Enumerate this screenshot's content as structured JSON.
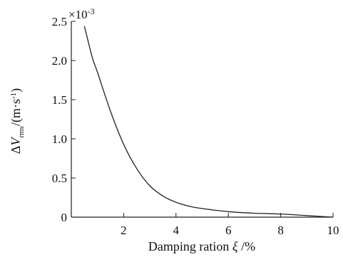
{
  "chart_data": {
    "type": "line",
    "title": "",
    "xlabel": {
      "prefix": "Damping ration ",
      "symbol": "ξ",
      "suffix": " /%"
    },
    "ylabel": {
      "delta": "Δ",
      "var": "V",
      "sub": "rms",
      "unit_prefix": "/(m·s",
      "unit_exp": "-1",
      "unit_suffix": ")"
    },
    "y_multiplier": {
      "base": "×10",
      "exponent": "-3"
    },
    "xlim": [
      0,
      10
    ],
    "ylim": [
      0,
      2.5
    ],
    "xticks": [
      2,
      4,
      6,
      8,
      10
    ],
    "xtick_labels": [
      "2",
      "4",
      "6",
      "8",
      "10"
    ],
    "yticks": [
      0,
      0.5,
      1.0,
      1.5,
      2.0,
      2.5
    ],
    "ytick_labels": [
      "0",
      "0.5",
      "1.0",
      "1.5",
      "2.0",
      "2.5"
    ],
    "grid": false,
    "series": [
      {
        "x": [
          0.5,
          0.8,
          1.0,
          1.5,
          2.0,
          2.5,
          3.0,
          3.5,
          4.0,
          4.5,
          5.0,
          6.0,
          7.0,
          8.0,
          9.0,
          10.0
        ],
        "y": [
          2.44,
          2.04,
          1.85,
          1.35,
          0.93,
          0.62,
          0.4,
          0.27,
          0.19,
          0.14,
          0.11,
          0.07,
          0.05,
          0.04,
          0.02,
          0.0
        ]
      }
    ],
    "colors": {
      "line": "#222222",
      "axis": "#222222",
      "text": "#111111"
    }
  }
}
